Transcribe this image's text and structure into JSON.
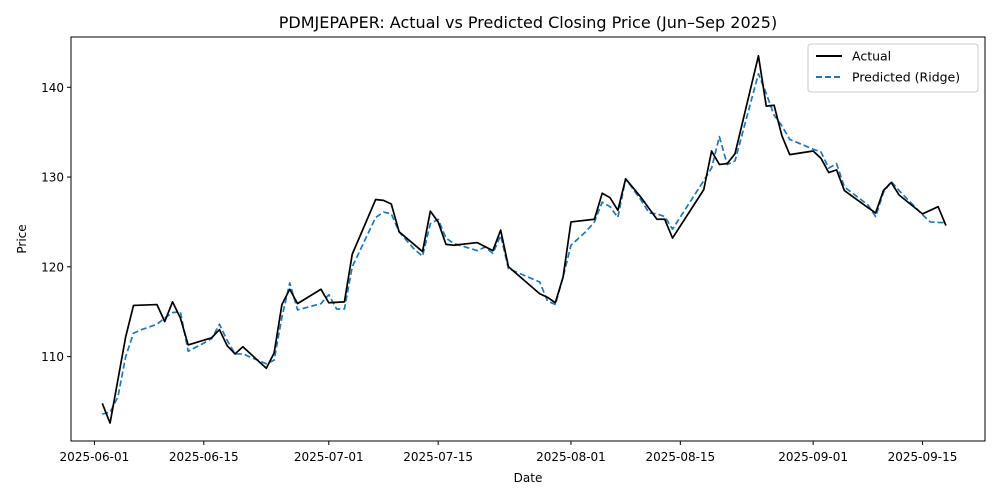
{
  "chart_data": {
    "type": "line",
    "title": "PDMJEPAPER: Actual vs Predicted Closing Price (Jun–Sep 2025)",
    "xlabel": "Date",
    "ylabel": "Price",
    "xlim": [
      "2025-05-29",
      "2025-09-23"
    ],
    "ylim": [
      100.6,
      145.6
    ],
    "x_ticks": [
      "2025-06-01",
      "2025-06-15",
      "2025-07-01",
      "2025-07-15",
      "2025-08-01",
      "2025-08-15",
      "2025-09-01",
      "2025-09-15"
    ],
    "y_ticks": [
      110,
      120,
      130,
      140
    ],
    "grid": false,
    "legend_position": "top-right",
    "colors": {
      "actual": "#000000",
      "predicted": "#1f77b4"
    },
    "series": [
      {
        "name": "Actual",
        "style": "solid",
        "points": [
          [
            "2025-06-02",
            104.8
          ],
          [
            "2025-06-03",
            102.6
          ],
          [
            "2025-06-05",
            112.2
          ],
          [
            "2025-06-06",
            115.7
          ],
          [
            "2025-06-09",
            115.8
          ],
          [
            "2025-06-10",
            113.9
          ],
          [
            "2025-06-11",
            116.1
          ],
          [
            "2025-06-12",
            114.3
          ],
          [
            "2025-06-13",
            111.3
          ],
          [
            "2025-06-16",
            112.1
          ],
          [
            "2025-06-17",
            113.0
          ],
          [
            "2025-06-18",
            111.2
          ],
          [
            "2025-06-19",
            110.3
          ],
          [
            "2025-06-20",
            111.1
          ],
          [
            "2025-06-23",
            108.7
          ],
          [
            "2025-06-24",
            110.4
          ],
          [
            "2025-06-25",
            115.8
          ],
          [
            "2025-06-26",
            117.5
          ],
          [
            "2025-06-27",
            115.9
          ],
          [
            "2025-06-30",
            117.5
          ],
          [
            "2025-07-01",
            116.0
          ],
          [
            "2025-07-03",
            116.1
          ],
          [
            "2025-07-04",
            121.4
          ],
          [
            "2025-07-07",
            127.5
          ],
          [
            "2025-07-08",
            127.4
          ],
          [
            "2025-07-09",
            127.0
          ],
          [
            "2025-07-10",
            123.9
          ],
          [
            "2025-07-13",
            121.7
          ],
          [
            "2025-07-14",
            126.2
          ],
          [
            "2025-07-15",
            125.0
          ],
          [
            "2025-07-16",
            122.5
          ],
          [
            "2025-07-17",
            122.4
          ],
          [
            "2025-07-20",
            122.7
          ],
          [
            "2025-07-22",
            121.8
          ],
          [
            "2025-07-23",
            124.1
          ],
          [
            "2025-07-24",
            120.0
          ],
          [
            "2025-07-28",
            117.0
          ],
          [
            "2025-07-29",
            116.6
          ],
          [
            "2025-07-30",
            116.0
          ],
          [
            "2025-07-31",
            118.9
          ],
          [
            "2025-08-01",
            125.0
          ],
          [
            "2025-08-04",
            125.3
          ],
          [
            "2025-08-05",
            128.2
          ],
          [
            "2025-08-06",
            127.7
          ],
          [
            "2025-08-07",
            126.3
          ],
          [
            "2025-08-08",
            129.8
          ],
          [
            "2025-08-10",
            127.7
          ],
          [
            "2025-08-11",
            126.5
          ],
          [
            "2025-08-12",
            125.3
          ],
          [
            "2025-08-13",
            125.3
          ],
          [
            "2025-08-14",
            123.2
          ],
          [
            "2025-08-18",
            128.6
          ],
          [
            "2025-08-19",
            132.9
          ],
          [
            "2025-08-20",
            131.4
          ],
          [
            "2025-08-21",
            131.5
          ],
          [
            "2025-08-22",
            132.6
          ],
          [
            "2025-08-25",
            143.5
          ],
          [
            "2025-08-26",
            137.9
          ],
          [
            "2025-08-27",
            138.0
          ],
          [
            "2025-08-28",
            134.6
          ],
          [
            "2025-08-29",
            132.5
          ],
          [
            "2025-09-01",
            132.9
          ],
          [
            "2025-09-02",
            132.1
          ],
          [
            "2025-09-03",
            130.5
          ],
          [
            "2025-09-04",
            130.8
          ],
          [
            "2025-09-05",
            128.5
          ],
          [
            "2025-09-08",
            126.6
          ],
          [
            "2025-09-09",
            126.0
          ],
          [
            "2025-09-10",
            128.5
          ],
          [
            "2025-09-11",
            129.4
          ],
          [
            "2025-09-12",
            128.0
          ],
          [
            "2025-09-15",
            125.9
          ],
          [
            "2025-09-17",
            126.7
          ],
          [
            "2025-09-18",
            124.6
          ]
        ]
      },
      {
        "name": "Predicted (Ridge)",
        "style": "dashed",
        "points": [
          [
            "2025-06-02",
            103.6
          ],
          [
            "2025-06-03",
            103.8
          ],
          [
            "2025-06-04",
            105.5
          ],
          [
            "2025-06-05",
            110.0
          ],
          [
            "2025-06-06",
            112.6
          ],
          [
            "2025-06-07",
            113.0
          ],
          [
            "2025-06-09",
            113.6
          ],
          [
            "2025-06-10",
            114.3
          ],
          [
            "2025-06-11",
            114.9
          ],
          [
            "2025-06-12",
            115.0
          ],
          [
            "2025-06-13",
            110.6
          ],
          [
            "2025-06-15",
            111.5
          ],
          [
            "2025-06-16",
            112.0
          ],
          [
            "2025-06-17",
            113.6
          ],
          [
            "2025-06-18",
            111.8
          ],
          [
            "2025-06-19",
            110.3
          ],
          [
            "2025-06-20",
            110.3
          ],
          [
            "2025-06-23",
            109.2
          ],
          [
            "2025-06-24",
            109.6
          ],
          [
            "2025-06-25",
            114.4
          ],
          [
            "2025-06-26",
            118.2
          ],
          [
            "2025-06-27",
            115.2
          ],
          [
            "2025-06-30",
            115.9
          ],
          [
            "2025-07-01",
            116.9
          ],
          [
            "2025-07-02",
            115.3
          ],
          [
            "2025-07-03",
            115.3
          ],
          [
            "2025-07-04",
            120.0
          ],
          [
            "2025-07-07",
            125.5
          ],
          [
            "2025-07-08",
            126.1
          ],
          [
            "2025-07-09",
            125.9
          ],
          [
            "2025-07-10",
            123.9
          ],
          [
            "2025-07-12",
            121.9
          ],
          [
            "2025-07-13",
            121.2
          ],
          [
            "2025-07-14",
            124.8
          ],
          [
            "2025-07-15",
            125.3
          ],
          [
            "2025-07-16",
            123.2
          ],
          [
            "2025-07-17",
            122.6
          ],
          [
            "2025-07-20",
            121.8
          ],
          [
            "2025-07-21",
            122.2
          ],
          [
            "2025-07-22",
            121.5
          ],
          [
            "2025-07-23",
            123.5
          ],
          [
            "2025-07-24",
            119.8
          ],
          [
            "2025-07-28",
            118.3
          ],
          [
            "2025-07-29",
            116.2
          ],
          [
            "2025-07-30",
            115.8
          ],
          [
            "2025-07-31",
            118.9
          ],
          [
            "2025-08-01",
            122.4
          ],
          [
            "2025-08-03",
            124.0
          ],
          [
            "2025-08-04",
            125.0
          ],
          [
            "2025-08-05",
            127.2
          ],
          [
            "2025-08-06",
            126.7
          ],
          [
            "2025-08-07",
            125.5
          ],
          [
            "2025-08-08",
            129.8
          ],
          [
            "2025-08-10",
            127.4
          ],
          [
            "2025-08-11",
            126.0
          ],
          [
            "2025-08-12",
            125.9
          ],
          [
            "2025-08-13",
            125.6
          ],
          [
            "2025-08-14",
            124.2
          ],
          [
            "2025-08-18",
            129.6
          ],
          [
            "2025-08-19",
            131.0
          ],
          [
            "2025-08-20",
            134.5
          ],
          [
            "2025-08-21",
            131.4
          ],
          [
            "2025-08-22",
            131.8
          ],
          [
            "2025-08-25",
            141.5
          ],
          [
            "2025-08-26",
            139.3
          ],
          [
            "2025-08-27",
            136.9
          ],
          [
            "2025-08-28",
            135.7
          ],
          [
            "2025-08-29",
            134.2
          ],
          [
            "2025-09-01",
            133.1
          ],
          [
            "2025-09-02",
            132.8
          ],
          [
            "2025-09-03",
            131.0
          ],
          [
            "2025-09-04",
            131.5
          ],
          [
            "2025-09-05",
            128.9
          ],
          [
            "2025-09-08",
            126.9
          ],
          [
            "2025-09-09",
            125.6
          ],
          [
            "2025-09-10",
            128.3
          ],
          [
            "2025-09-11",
            129.5
          ],
          [
            "2025-09-12",
            128.5
          ],
          [
            "2025-09-15",
            125.8
          ],
          [
            "2025-09-16",
            125.0
          ],
          [
            "2025-09-18",
            124.9
          ]
        ]
      }
    ]
  }
}
